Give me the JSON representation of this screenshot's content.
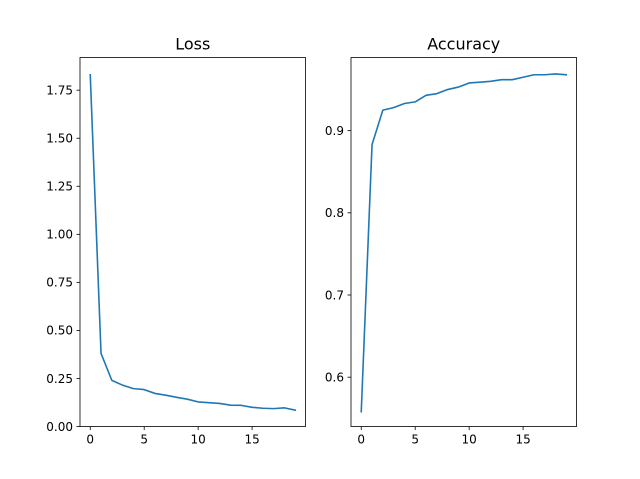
{
  "chart_data": [
    {
      "type": "line",
      "title": "Loss",
      "xlabel": "",
      "ylabel": "",
      "xlim": [
        -0.95,
        19.95
      ],
      "ylim": [
        0,
        1.92
      ],
      "xticks": [
        0,
        5,
        10,
        15
      ],
      "yticks": [
        0.0,
        0.25,
        0.5,
        0.75,
        1.0,
        1.25,
        1.5,
        1.75
      ],
      "ytick_labels": [
        "0.00",
        "0.25",
        "0.50",
        "0.75",
        "1.00",
        "1.25",
        "1.50",
        "1.75"
      ],
      "grid": false,
      "series": [
        {
          "color": "#1f77b4",
          "x": [
            0,
            1,
            2,
            3,
            4,
            5,
            6,
            7,
            8,
            9,
            10,
            11,
            12,
            13,
            14,
            15,
            16,
            17,
            18,
            19
          ],
          "y": [
            1.83,
            0.38,
            0.24,
            0.215,
            0.197,
            0.192,
            0.172,
            0.163,
            0.152,
            0.142,
            0.128,
            0.124,
            0.12,
            0.111,
            0.11,
            0.1,
            0.095,
            0.093,
            0.097,
            0.085
          ]
        }
      ]
    },
    {
      "type": "line",
      "title": "Accuracy",
      "xlabel": "",
      "ylabel": "",
      "xlim": [
        -0.95,
        19.95
      ],
      "ylim": [
        0.54,
        0.989
      ],
      "xticks": [
        0,
        5,
        10,
        15
      ],
      "yticks": [
        0.6,
        0.7,
        0.8,
        0.9
      ],
      "ytick_labels": [
        "0.6",
        "0.7",
        "0.8",
        "0.9"
      ],
      "grid": false,
      "series": [
        {
          "color": "#1f77b4",
          "x": [
            0,
            1,
            2,
            3,
            4,
            5,
            6,
            7,
            8,
            9,
            10,
            11,
            12,
            13,
            14,
            15,
            16,
            17,
            18,
            19
          ],
          "y": [
            0.558,
            0.883,
            0.925,
            0.928,
            0.933,
            0.935,
            0.943,
            0.945,
            0.95,
            0.953,
            0.958,
            0.959,
            0.96,
            0.962,
            0.962,
            0.965,
            0.968,
            0.968,
            0.969,
            0.968
          ]
        }
      ]
    }
  ]
}
